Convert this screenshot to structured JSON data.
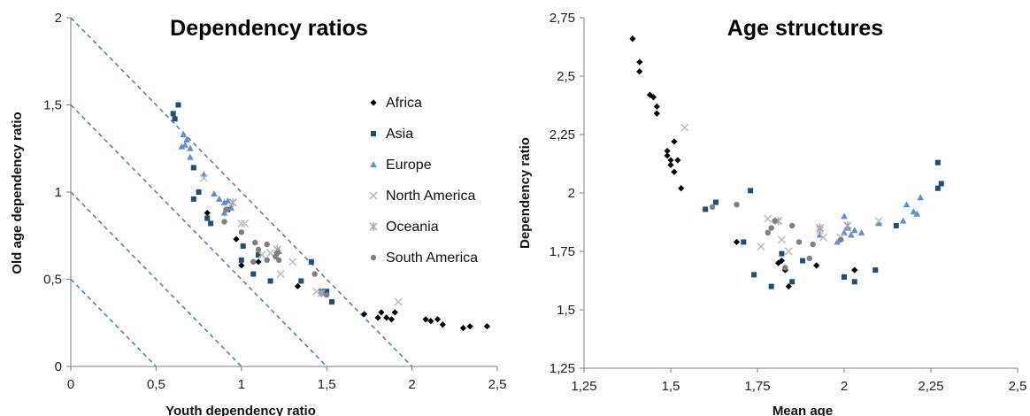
{
  "chart_data": [
    {
      "type": "scatter",
      "title": "Dependency ratios",
      "xlabel": "Youth dependency ratio",
      "ylabel": "Old age dependency ratio",
      "xlim": [
        0,
        2.5
      ],
      "ylim": [
        0,
        2
      ],
      "xticks": [
        "0",
        "0,5",
        "1",
        "1,5",
        "2",
        "2,5"
      ],
      "yticks": [
        "0",
        "0,5",
        "1",
        "1,5",
        "2"
      ],
      "xtick_values": [
        0,
        0.5,
        1,
        1.5,
        2,
        2.5
      ],
      "ytick_values": [
        0,
        0.5,
        1,
        1.5,
        2
      ],
      "grid": false,
      "legend_position": "right",
      "reference_lines": [
        {
          "x": [
            0,
            0.5
          ],
          "y": [
            0.5,
            0
          ]
        },
        {
          "x": [
            0,
            1
          ],
          "y": [
            1,
            0
          ]
        },
        {
          "x": [
            0,
            1.5
          ],
          "y": [
            1.5,
            0
          ]
        },
        {
          "x": [
            0,
            2
          ],
          "y": [
            2,
            0
          ]
        }
      ],
      "series": [
        {
          "name": "Africa",
          "marker": "diamond",
          "color": "#000000",
          "points": [
            [
              0.8,
              0.88
            ],
            [
              0.97,
              0.73
            ],
            [
              1.0,
              0.58
            ],
            [
              1.1,
              0.6
            ],
            [
              1.33,
              0.46
            ],
            [
              1.72,
              0.3
            ],
            [
              1.8,
              0.28
            ],
            [
              1.82,
              0.31
            ],
            [
              1.85,
              0.28
            ],
            [
              1.88,
              0.27
            ],
            [
              1.9,
              0.31
            ],
            [
              2.08,
              0.27
            ],
            [
              2.11,
              0.26
            ],
            [
              2.15,
              0.27
            ],
            [
              2.18,
              0.24
            ],
            [
              2.3,
              0.22
            ],
            [
              2.34,
              0.23
            ],
            [
              2.44,
              0.23
            ]
          ]
        },
        {
          "name": "Asia",
          "marker": "square",
          "color": "#1f4e79",
          "points": [
            [
              0.6,
              1.45
            ],
            [
              0.61,
              1.42
            ],
            [
              0.63,
              1.5
            ],
            [
              0.72,
              1.14
            ],
            [
              0.72,
              0.96
            ],
            [
              0.75,
              1.0
            ],
            [
              0.8,
              0.85
            ],
            [
              0.82,
              0.82
            ],
            [
              0.92,
              0.9
            ],
            [
              1.0,
              0.61
            ],
            [
              1.01,
              0.69
            ],
            [
              1.07,
              0.53
            ],
            [
              1.1,
              0.64
            ],
            [
              1.17,
              0.49
            ],
            [
              1.35,
              0.49
            ],
            [
              1.41,
              0.6
            ],
            [
              1.47,
              0.43
            ],
            [
              1.5,
              0.43
            ],
            [
              1.53,
              0.37
            ]
          ]
        },
        {
          "name": "Europe",
          "marker": "triangle",
          "color": "#5b8fd5",
          "points": [
            [
              0.65,
              1.26
            ],
            [
              0.66,
              1.33
            ],
            [
              0.67,
              1.27
            ],
            [
              0.68,
              1.3
            ],
            [
              0.7,
              1.2
            ],
            [
              0.7,
              1.25
            ],
            [
              0.78,
              1.1
            ],
            [
              0.84,
              0.99
            ],
            [
              0.87,
              0.96
            ],
            [
              0.9,
              0.94
            ],
            [
              0.9,
              0.88
            ],
            [
              0.92,
              0.95
            ],
            [
              0.94,
              0.91
            ],
            [
              1.22,
              0.66
            ],
            [
              1.47,
              0.43
            ],
            [
              1.48,
              0.42
            ]
          ]
        },
        {
          "name": "North America",
          "marker": "x",
          "color": "#bfbfbf",
          "points": [
            [
              0.78,
              1.08
            ],
            [
              1.0,
              0.82
            ],
            [
              1.02,
              0.82
            ],
            [
              1.12,
              0.64
            ],
            [
              1.17,
              0.65
            ],
            [
              1.23,
              0.53
            ],
            [
              1.3,
              0.6
            ],
            [
              1.44,
              0.43
            ],
            [
              1.92,
              0.37
            ]
          ]
        },
        {
          "name": "Oceania",
          "marker": "star",
          "color": "#a6a6a6",
          "points": [
            [
              0.95,
              0.94
            ],
            [
              1.21,
              0.67
            ],
            [
              1.47,
              0.42
            ]
          ]
        },
        {
          "name": "South America",
          "marker": "circle",
          "color": "#808080",
          "points": [
            [
              0.9,
              0.83
            ],
            [
              0.91,
              0.9
            ],
            [
              1.0,
              0.77
            ],
            [
              1.07,
              0.6
            ],
            [
              1.08,
              0.71
            ],
            [
              1.1,
              0.67
            ],
            [
              1.15,
              0.61
            ],
            [
              1.15,
              0.7
            ],
            [
              1.2,
              0.63
            ],
            [
              1.21,
              0.65
            ],
            [
              1.22,
              0.61
            ],
            [
              1.43,
              0.53
            ],
            [
              1.5,
              0.41
            ]
          ]
        }
      ]
    },
    {
      "type": "scatter",
      "title": "Age structures",
      "xlabel": "Mean age",
      "ylabel": "Dependency ratio",
      "xlim": [
        1.25,
        2.5
      ],
      "ylim": [
        1.25,
        2.75
      ],
      "xticks": [
        "1,25",
        "1,5",
        "1,75",
        "2",
        "2,25",
        "2,5"
      ],
      "yticks": [
        "1,25",
        "1,5",
        "1,75",
        "2",
        "2,25",
        "2,5",
        "2,75"
      ],
      "xtick_values": [
        1.25,
        1.5,
        1.75,
        2,
        2.25,
        2.5
      ],
      "ytick_values": [
        1.25,
        1.5,
        1.75,
        2,
        2.25,
        2.5,
        2.75
      ],
      "grid": false,
      "series": [
        {
          "name": "Africa",
          "marker": "diamond",
          "color": "#000000",
          "points": [
            [
              1.39,
              2.66
            ],
            [
              1.41,
              2.56
            ],
            [
              1.41,
              2.52
            ],
            [
              1.44,
              2.42
            ],
            [
              1.45,
              2.41
            ],
            [
              1.46,
              2.37
            ],
            [
              1.46,
              2.34
            ],
            [
              1.49,
              2.18
            ],
            [
              1.49,
              2.16
            ],
            [
              1.5,
              2.14
            ],
            [
              1.5,
              2.12
            ],
            [
              1.51,
              2.22
            ],
            [
              1.51,
              2.09
            ],
            [
              1.52,
              2.14
            ],
            [
              1.53,
              2.02
            ],
            [
              1.69,
              1.79
            ],
            [
              1.81,
              1.7
            ],
            [
              1.82,
              1.71
            ],
            [
              1.83,
              1.67
            ],
            [
              1.84,
              1.6
            ],
            [
              1.92,
              1.69
            ],
            [
              2.03,
              1.67
            ]
          ]
        },
        {
          "name": "Asia",
          "marker": "square",
          "color": "#1f4e79",
          "points": [
            [
              1.6,
              1.93
            ],
            [
              1.63,
              1.96
            ],
            [
              1.71,
              1.79
            ],
            [
              1.73,
              2.01
            ],
            [
              1.74,
              1.65
            ],
            [
              1.79,
              1.6
            ],
            [
              1.82,
              1.74
            ],
            [
              1.85,
              1.62
            ],
            [
              1.88,
              1.71
            ],
            [
              2.0,
              1.64
            ],
            [
              2.03,
              1.62
            ],
            [
              2.09,
              1.67
            ],
            [
              2.15,
              1.86
            ],
            [
              2.27,
              2.02
            ],
            [
              2.27,
              2.13
            ],
            [
              2.28,
              2.04
            ]
          ]
        },
        {
          "name": "Europe",
          "marker": "triangle",
          "color": "#5b8fd5",
          "points": [
            [
              1.93,
              1.82
            ],
            [
              1.98,
              1.79
            ],
            [
              2.0,
              1.83
            ],
            [
              2.0,
              1.9
            ],
            [
              2.01,
              1.85
            ],
            [
              2.02,
              1.82
            ],
            [
              2.03,
              1.84
            ],
            [
              2.05,
              1.83
            ],
            [
              2.1,
              1.87
            ],
            [
              2.17,
              1.88
            ],
            [
              2.18,
              1.95
            ],
            [
              2.2,
              1.92
            ],
            [
              2.21,
              1.91
            ],
            [
              2.22,
              1.98
            ]
          ]
        },
        {
          "name": "North America",
          "marker": "x",
          "color": "#bfbfbf",
          "points": [
            [
              1.54,
              2.28
            ],
            [
              1.76,
              1.77
            ],
            [
              1.78,
              1.89
            ],
            [
              1.82,
              1.8
            ],
            [
              1.84,
              1.75
            ],
            [
              1.93,
              1.84
            ],
            [
              1.94,
              1.81
            ],
            [
              1.99,
              1.81
            ],
            [
              2.1,
              1.88
            ]
          ]
        },
        {
          "name": "Oceania",
          "marker": "star",
          "color": "#a6a6a6",
          "points": [
            [
              1.81,
              1.88
            ],
            [
              1.93,
              1.85
            ],
            [
              2.01,
              1.86
            ]
          ]
        },
        {
          "name": "South America",
          "marker": "circle",
          "color": "#808080",
          "points": [
            [
              1.62,
              1.94
            ],
            [
              1.69,
              1.95
            ],
            [
              1.78,
              1.83
            ],
            [
              1.79,
              1.85
            ],
            [
              1.8,
              1.88
            ],
            [
              1.83,
              1.68
            ],
            [
              1.85,
              1.86
            ],
            [
              1.87,
              1.79
            ],
            [
              1.9,
              1.72
            ],
            [
              1.91,
              1.78
            ],
            [
              1.99,
              1.8
            ]
          ]
        }
      ]
    }
  ]
}
